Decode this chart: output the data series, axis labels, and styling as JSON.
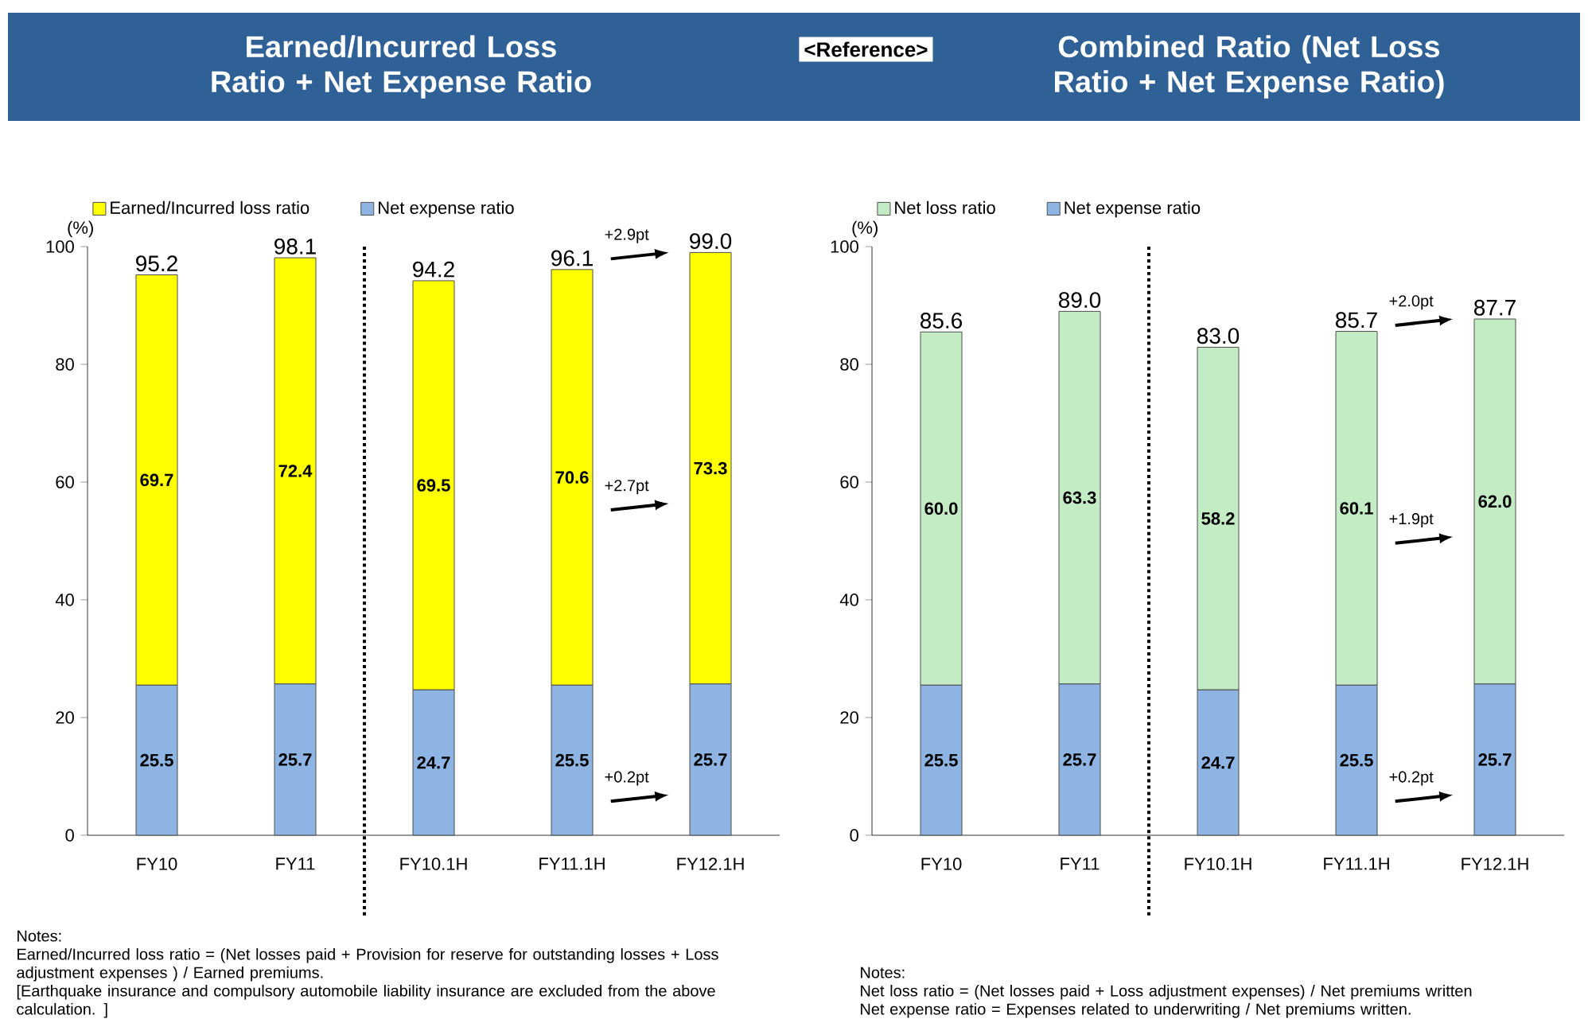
{
  "chart_data": [
    {
      "type": "bar",
      "title": "Earned/Incurred Loss Ratio + Net Expense Ratio",
      "ylabel": "(%)",
      "stacked": true,
      "categories": [
        "FY10",
        "FY11",
        "FY10.1H",
        "FY11.1H",
        "FY12.1H"
      ],
      "series": [
        {
          "name": "Net expense ratio",
          "color": "#8db4e2",
          "values": [
            25.5,
            25.7,
            24.7,
            25.5,
            25.7
          ],
          "value_labels": [
            "25.5",
            "25.7",
            "24.7",
            "25.5",
            "25.7"
          ]
        },
        {
          "name": "Earned/Incurred loss ratio",
          "color": "#ffff00",
          "values": [
            69.7,
            72.4,
            69.5,
            70.6,
            73.3
          ],
          "value_labels": [
            "69.7",
            "72.4",
            "69.5",
            "70.6",
            "73.3"
          ]
        }
      ],
      "totals": [
        "95.2",
        "98.1",
        "94.2",
        "96.1",
        "99.0"
      ],
      "ylim": [
        0,
        100
      ],
      "yticks": [
        0,
        20,
        40,
        60,
        80,
        100
      ],
      "legend": "top left",
      "annotations": [
        "+2.9pt",
        "+2.7pt",
        "+0.2pt",
        "Notes:",
        "Earned/Incurred loss ratio = (Net losses paid +  Provision for reserve for outstanding losses + Loss adjustment expenses ) / Earned premiums.",
        "[Earthquake insurance and compulsory automobile liability insurance are excluded  from the above calculation. ]"
      ]
    },
    {
      "type": "bar",
      "title": "Combined Ratio (Net Loss Ratio + Net Expense Ratio)",
      "subtitle": "<Reference>",
      "ylabel": "(%)",
      "stacked": true,
      "categories": [
        "FY10",
        "FY11",
        "FY10.1H",
        "FY11.1H",
        "FY12.1H"
      ],
      "series": [
        {
          "name": "Net expense ratio",
          "color": "#8db4e2",
          "values": [
            25.5,
            25.7,
            24.7,
            25.5,
            25.7
          ],
          "value_labels": [
            "25.5",
            "25.7",
            "24.7",
            "25.5",
            "25.7"
          ]
        },
        {
          "name": "Net loss ratio",
          "color": "#c4ecc4",
          "values": [
            60.0,
            63.3,
            58.2,
            60.1,
            62.0
          ],
          "value_labels": [
            "60.0",
            "63.3",
            "58.2",
            "60.1",
            "62.0"
          ]
        }
      ],
      "totals": [
        "85.6",
        "89.0",
        "83.0",
        "85.7",
        "87.7"
      ],
      "ylim": [
        0,
        100
      ],
      "yticks": [
        0,
        20,
        40,
        60,
        80,
        100
      ],
      "legend": "top left",
      "annotations": [
        "+2.0pt",
        "+1.9pt",
        "+0.2pt",
        "Notes:",
        "Net loss ratio = (Net losses paid + Loss adjustment expenses) / Net premiums written",
        "Net expense ratio = Expenses related to underwriting  / Net premiums written."
      ]
    }
  ]
}
